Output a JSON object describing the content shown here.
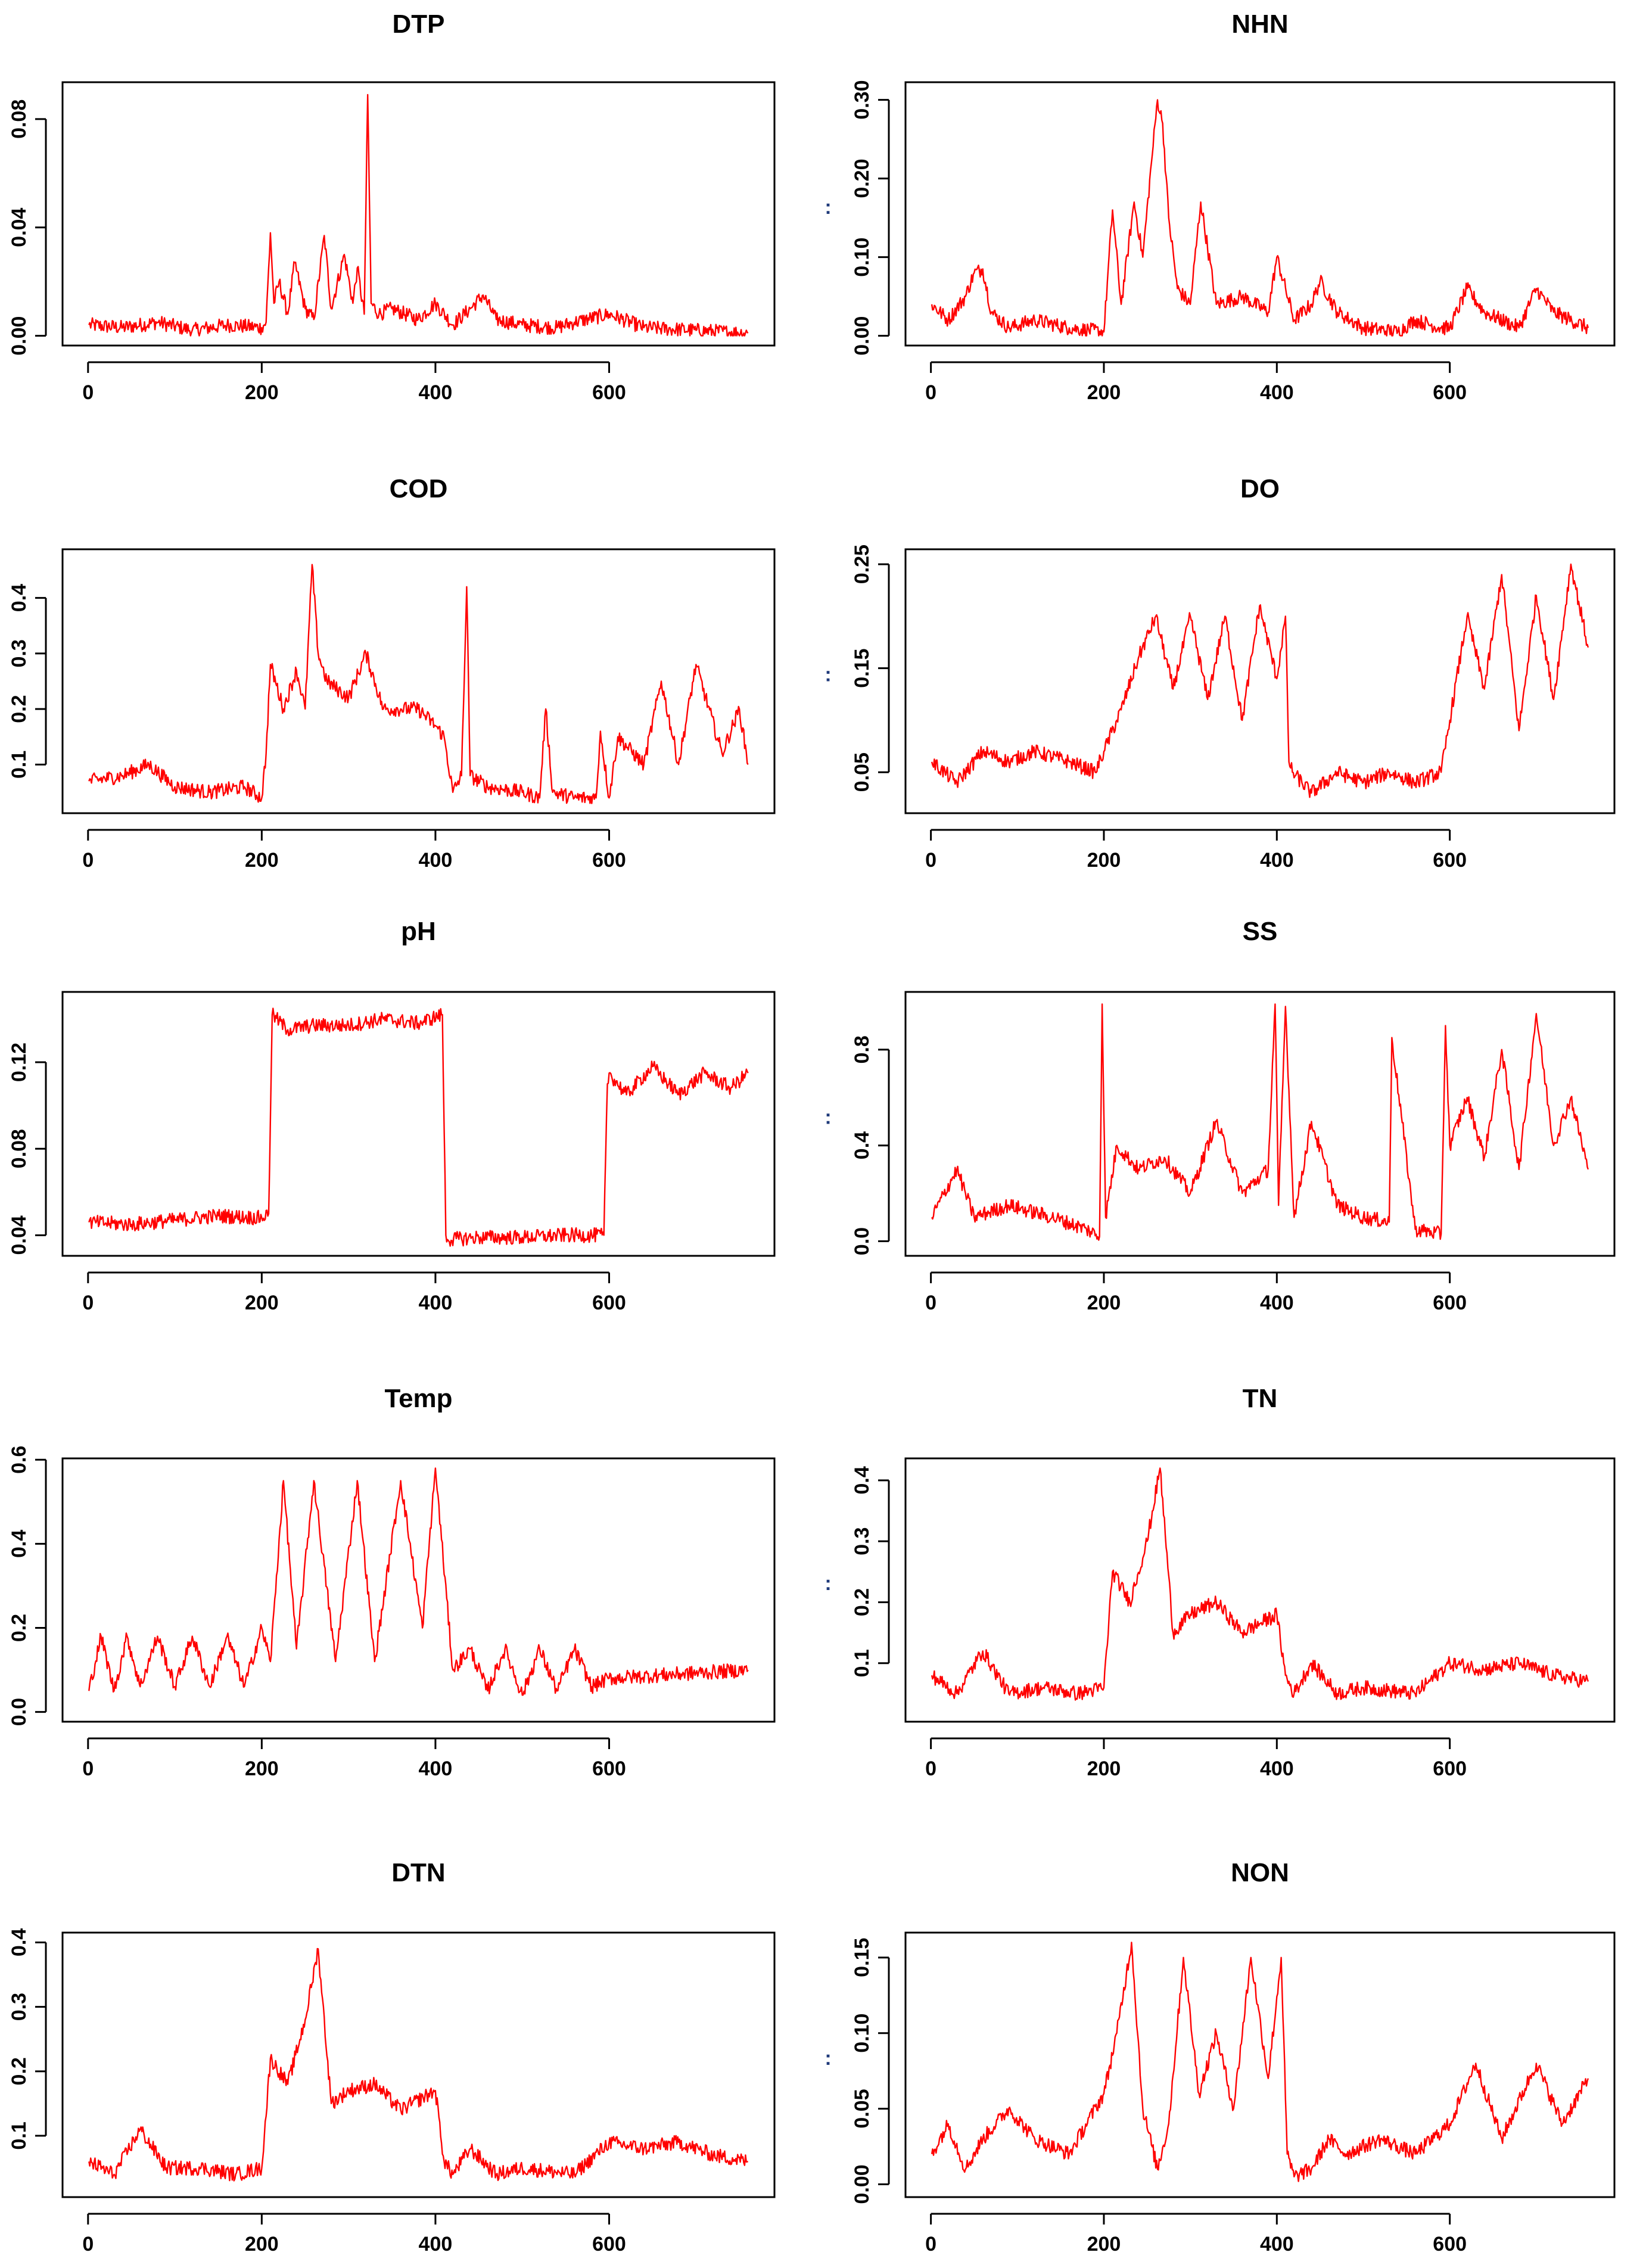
{
  "chart_data": [
    {
      "type": "line",
      "title": "DTP",
      "x_range": [
        1,
        760
      ],
      "ylim": [
        0,
        0.09
      ],
      "xticks": [
        0,
        200,
        400,
        600
      ],
      "xtick_labels": [
        "0",
        "200",
        "400",
        "600"
      ],
      "yticks": [
        0,
        0.04,
        0.08
      ],
      "ytick_labels": [
        "0.00",
        "0.04",
        "0.08"
      ],
      "color": "#ff0000",
      "series": [
        {
          "name": "DTP",
          "x": [
            1,
            40,
            80,
            120,
            160,
            200,
            205,
            210,
            214,
            220,
            230,
            238,
            250,
            260,
            272,
            280,
            295,
            305,
            310,
            318,
            322,
            326,
            335,
            350,
            380,
            400,
            420,
            440,
            455,
            470,
            500,
            540,
            560,
            600,
            640,
            700,
            760
          ],
          "y": [
            0.004,
            0.003,
            0.005,
            0.002,
            0.004,
            0.003,
            0.005,
            0.038,
            0.012,
            0.02,
            0.008,
            0.027,
            0.01,
            0.006,
            0.037,
            0.01,
            0.03,
            0.012,
            0.025,
            0.008,
            0.089,
            0.012,
            0.008,
            0.01,
            0.006,
            0.012,
            0.004,
            0.01,
            0.015,
            0.006,
            0.004,
            0.003,
            0.005,
            0.008,
            0.003,
            0.002,
            0.001
          ]
        }
      ]
    },
    {
      "type": "line",
      "title": "NHN",
      "x_range": [
        1,
        760
      ],
      "ylim": [
        0,
        0.31
      ],
      "xticks": [
        0,
        200,
        400,
        600
      ],
      "xtick_labels": [
        "0",
        "200",
        "400",
        "600"
      ],
      "yticks": [
        0,
        0.1,
        0.2,
        0.3
      ],
      "ytick_labels": [
        "0.00",
        "0.10",
        "0.20",
        "0.30"
      ],
      "color": "#ff0000",
      "y_label_mark": ":",
      "series": [
        {
          "name": "NHN",
          "x": [
            1,
            20,
            40,
            50,
            60,
            70,
            90,
            120,
            160,
            200,
            210,
            220,
            235,
            245,
            255,
            262,
            268,
            275,
            285,
            300,
            312,
            330,
            360,
            390,
            400,
            420,
            440,
            450,
            470,
            500,
            540,
            560,
            590,
            600,
            620,
            640,
            680,
            700,
            720,
            760
          ],
          "y": [
            0.04,
            0.02,
            0.05,
            0.08,
            0.085,
            0.03,
            0.01,
            0.02,
            0.01,
            0.005,
            0.16,
            0.04,
            0.17,
            0.1,
            0.22,
            0.3,
            0.27,
            0.15,
            0.06,
            0.04,
            0.17,
            0.04,
            0.05,
            0.03,
            0.1,
            0.02,
            0.04,
            0.07,
            0.03,
            0.01,
            0.005,
            0.02,
            0.01,
            0.01,
            0.06,
            0.03,
            0.01,
            0.06,
            0.03,
            0.01
          ]
        }
      ]
    },
    {
      "type": "line",
      "title": "COD",
      "x_range": [
        1,
        760
      ],
      "ylim": [
        0.03,
        0.47
      ],
      "xticks": [
        0,
        200,
        400,
        600
      ],
      "xtick_labels": [
        "0",
        "200",
        "400",
        "600"
      ],
      "yticks": [
        0.1,
        0.2,
        0.3,
        0.4
      ],
      "ytick_labels": [
        "0.1",
        "0.2",
        "0.3",
        "0.4"
      ],
      "color": "#ff0000",
      "series": [
        {
          "name": "COD",
          "x": [
            1,
            40,
            70,
            100,
            140,
            180,
            200,
            205,
            210,
            225,
            240,
            250,
            258,
            265,
            275,
            300,
            320,
            340,
            360,
            380,
            400,
            410,
            420,
            430,
            436,
            440,
            460,
            500,
            520,
            527,
            535,
            560,
            585,
            590,
            600,
            610,
            640,
            660,
            680,
            700,
            730,
            750,
            760
          ],
          "y": [
            0.07,
            0.08,
            0.1,
            0.06,
            0.05,
            0.06,
            0.04,
            0.12,
            0.28,
            0.2,
            0.27,
            0.2,
            0.46,
            0.3,
            0.25,
            0.22,
            0.3,
            0.2,
            0.2,
            0.2,
            0.17,
            0.15,
            0.05,
            0.08,
            0.42,
            0.08,
            0.06,
            0.05,
            0.04,
            0.2,
            0.05,
            0.04,
            0.04,
            0.16,
            0.04,
            0.15,
            0.1,
            0.25,
            0.1,
            0.28,
            0.12,
            0.2,
            0.1
          ]
        }
      ]
    },
    {
      "type": "line",
      "title": "DO",
      "x_range": [
        1,
        760
      ],
      "ylim": [
        0.02,
        0.255
      ],
      "xticks": [
        0,
        200,
        400,
        600
      ],
      "xtick_labels": [
        "0",
        "200",
        "400",
        "600"
      ],
      "yticks": [
        0.05,
        0.15,
        0.25
      ],
      "ytick_labels": [
        "0.05",
        "0.15",
        "0.25"
      ],
      "color": "#ff0000",
      "y_label_mark": ":",
      "series": [
        {
          "name": "DO",
          "x": [
            1,
            30,
            60,
            90,
            120,
            160,
            190,
            200,
            220,
            240,
            260,
            280,
            300,
            320,
            340,
            360,
            380,
            400,
            410,
            414,
            418,
            440,
            470,
            500,
            530,
            560,
            590,
            600,
            620,
            640,
            660,
            680,
            700,
            720,
            740,
            760
          ],
          "y": [
            0.06,
            0.04,
            0.07,
            0.06,
            0.07,
            0.06,
            0.05,
            0.07,
            0.11,
            0.16,
            0.2,
            0.13,
            0.2,
            0.12,
            0.2,
            0.1,
            0.21,
            0.14,
            0.2,
            0.06,
            0.05,
            0.03,
            0.05,
            0.04,
            0.05,
            0.04,
            0.05,
            0.1,
            0.2,
            0.13,
            0.24,
            0.09,
            0.22,
            0.12,
            0.25,
            0.17
          ]
        }
      ]
    },
    {
      "type": "line",
      "title": "pH",
      "x_range": [
        1,
        760
      ],
      "ylim": [
        0.035,
        0.148
      ],
      "xticks": [
        0,
        200,
        400,
        600
      ],
      "xtick_labels": [
        "0",
        "200",
        "400",
        "600"
      ],
      "yticks": [
        0.04,
        0.08,
        0.12
      ],
      "ytick_labels": [
        "0.04",
        "0.08",
        "0.12"
      ],
      "color": "#ff0000",
      "series": [
        {
          "name": "pH",
          "x": [
            1,
            50,
            100,
            150,
            200,
            208,
            212,
            230,
            260,
            300,
            340,
            380,
            408,
            412,
            414,
            450,
            500,
            550,
            594,
            598,
            600,
            620,
            650,
            680,
            710,
            740,
            760
          ],
          "y": [
            0.046,
            0.045,
            0.047,
            0.049,
            0.048,
            0.05,
            0.142,
            0.135,
            0.137,
            0.137,
            0.14,
            0.138,
            0.142,
            0.04,
            0.038,
            0.039,
            0.039,
            0.04,
            0.04,
            0.11,
            0.115,
            0.105,
            0.118,
            0.105,
            0.115,
            0.108,
            0.115
          ]
        }
      ]
    },
    {
      "type": "line",
      "title": "SS",
      "x_range": [
        1,
        760
      ],
      "ylim": [
        -0.02,
        1.0
      ],
      "xticks": [
        0,
        200,
        400,
        600
      ],
      "xtick_labels": [
        "0",
        "200",
        "400",
        "600"
      ],
      "yticks": [
        0,
        0.4,
        0.8
      ],
      "ytick_labels": [
        "0.0",
        "0.4",
        "0.8"
      ],
      "color": "#ff0000",
      "y_label_mark": ":",
      "series": [
        {
          "name": "SS",
          "x": [
            1,
            30,
            50,
            90,
            140,
            180,
            195,
            198,
            202,
            215,
            240,
            270,
            300,
            330,
            360,
            390,
            398,
            402,
            410,
            420,
            440,
            470,
            500,
            530,
            533,
            560,
            590,
            595,
            600,
            620,
            640,
            660,
            680,
            700,
            720,
            740,
            760
          ],
          "y": [
            0.1,
            0.3,
            0.1,
            0.15,
            0.1,
            0.05,
            0.02,
            0.99,
            0.1,
            0.4,
            0.3,
            0.35,
            0.2,
            0.5,
            0.2,
            0.3,
            0.99,
            0.15,
            0.98,
            0.1,
            0.5,
            0.15,
            0.1,
            0.08,
            0.85,
            0.05,
            0.03,
            0.9,
            0.4,
            0.6,
            0.35,
            0.8,
            0.3,
            0.95,
            0.4,
            0.6,
            0.3
          ]
        }
      ]
    },
    {
      "type": "line",
      "title": "Temp",
      "x_range": [
        1,
        760
      ],
      "ylim": [
        0,
        0.58
      ],
      "xticks": [
        0,
        200,
        400,
        600
      ],
      "xtick_labels": [
        "0",
        "200",
        "400",
        "600"
      ],
      "yticks": [
        0,
        0.2,
        0.4,
        0.6
      ],
      "ytick_labels": [
        "0.0",
        "0.2",
        "0.4",
        "0.6"
      ],
      "color": "#ff0000",
      "series": [
        {
          "name": "Temp",
          "x": [
            1,
            15,
            30,
            45,
            60,
            80,
            100,
            120,
            140,
            160,
            180,
            200,
            210,
            225,
            240,
            260,
            285,
            310,
            330,
            360,
            385,
            400,
            420,
            440,
            460,
            480,
            500,
            520,
            540,
            560,
            580,
            600,
            760
          ],
          "y": [
            0.05,
            0.18,
            0.05,
            0.18,
            0.06,
            0.18,
            0.06,
            0.18,
            0.06,
            0.18,
            0.06,
            0.2,
            0.12,
            0.55,
            0.15,
            0.55,
            0.12,
            0.55,
            0.12,
            0.55,
            0.2,
            0.58,
            0.1,
            0.15,
            0.05,
            0.15,
            0.04,
            0.15,
            0.05,
            0.15,
            0.06,
            0.08,
            0.1
          ]
        }
      ]
    },
    {
      "type": "line",
      "title": "TN",
      "x_range": [
        1,
        760
      ],
      "ylim": [
        0.02,
        0.42
      ],
      "xticks": [
        0,
        200,
        400,
        600
      ],
      "xtick_labels": [
        "0",
        "200",
        "400",
        "600"
      ],
      "yticks": [
        0.1,
        0.2,
        0.3,
        0.4
      ],
      "ytick_labels": [
        "0.1",
        "0.2",
        "0.3",
        "0.4"
      ],
      "color": "#ff0000",
      "y_label_mark": ":",
      "series": [
        {
          "name": "TN",
          "x": [
            1,
            30,
            60,
            90,
            130,
            170,
            200,
            210,
            230,
            250,
            265,
            280,
            300,
            330,
            360,
            400,
            410,
            420,
            440,
            470,
            500,
            560,
            600,
            640,
            680,
            720,
            760
          ],
          "y": [
            0.08,
            0.05,
            0.12,
            0.05,
            0.06,
            0.05,
            0.06,
            0.25,
            0.2,
            0.3,
            0.42,
            0.15,
            0.18,
            0.2,
            0.15,
            0.18,
            0.08,
            0.05,
            0.1,
            0.05,
            0.06,
            0.05,
            0.1,
            0.09,
            0.1,
            0.08,
            0.07
          ]
        }
      ]
    },
    {
      "type": "line",
      "title": "DTN",
      "x_range": [
        1,
        760
      ],
      "ylim": [
        0.02,
        0.4
      ],
      "xticks": [
        0,
        200,
        400,
        600
      ],
      "xtick_labels": [
        "0",
        "200",
        "400",
        "600"
      ],
      "yticks": [
        0.1,
        0.2,
        0.3,
        0.4
      ],
      "ytick_labels": [
        "0.1",
        "0.2",
        "0.3",
        "0.4"
      ],
      "color": "#ff0000",
      "series": [
        {
          "name": "DTN",
          "x": [
            1,
            30,
            60,
            90,
            130,
            170,
            200,
            210,
            230,
            250,
            265,
            280,
            300,
            330,
            360,
            400,
            410,
            420,
            440,
            470,
            500,
            560,
            600,
            640,
            680,
            720,
            760
          ],
          "y": [
            0.06,
            0.04,
            0.11,
            0.05,
            0.05,
            0.04,
            0.05,
            0.22,
            0.18,
            0.28,
            0.39,
            0.15,
            0.17,
            0.18,
            0.14,
            0.17,
            0.06,
            0.04,
            0.08,
            0.04,
            0.05,
            0.04,
            0.09,
            0.08,
            0.09,
            0.07,
            0.06
          ]
        }
      ]
    },
    {
      "type": "line",
      "title": "NON",
      "x_range": [
        1,
        760
      ],
      "ylim": [
        -0.002,
        0.16
      ],
      "xticks": [
        0,
        200,
        400,
        600
      ],
      "xtick_labels": [
        "0",
        "200",
        "400",
        "600"
      ],
      "yticks": [
        0,
        0.05,
        0.1,
        0.15
      ],
      "ytick_labels": [
        "0.00",
        "0.05",
        "0.10",
        "0.15"
      ],
      "color": "#ff0000",
      "y_label_mark": ":",
      "series": [
        {
          "name": "NON",
          "x": [
            1,
            20,
            40,
            60,
            90,
            120,
            160,
            200,
            215,
            232,
            245,
            262,
            275,
            292,
            310,
            330,
            350,
            370,
            390,
            405,
            412,
            420,
            440,
            460,
            480,
            520,
            560,
            600,
            630,
            660,
            700,
            730,
            760
          ],
          "y": [
            0.02,
            0.04,
            0.01,
            0.03,
            0.05,
            0.03,
            0.02,
            0.06,
            0.1,
            0.16,
            0.05,
            0.01,
            0.04,
            0.15,
            0.06,
            0.1,
            0.05,
            0.15,
            0.07,
            0.15,
            0.02,
            0.005,
            0.01,
            0.03,
            0.02,
            0.03,
            0.02,
            0.04,
            0.08,
            0.03,
            0.08,
            0.04,
            0.07
          ]
        }
      ]
    }
  ]
}
